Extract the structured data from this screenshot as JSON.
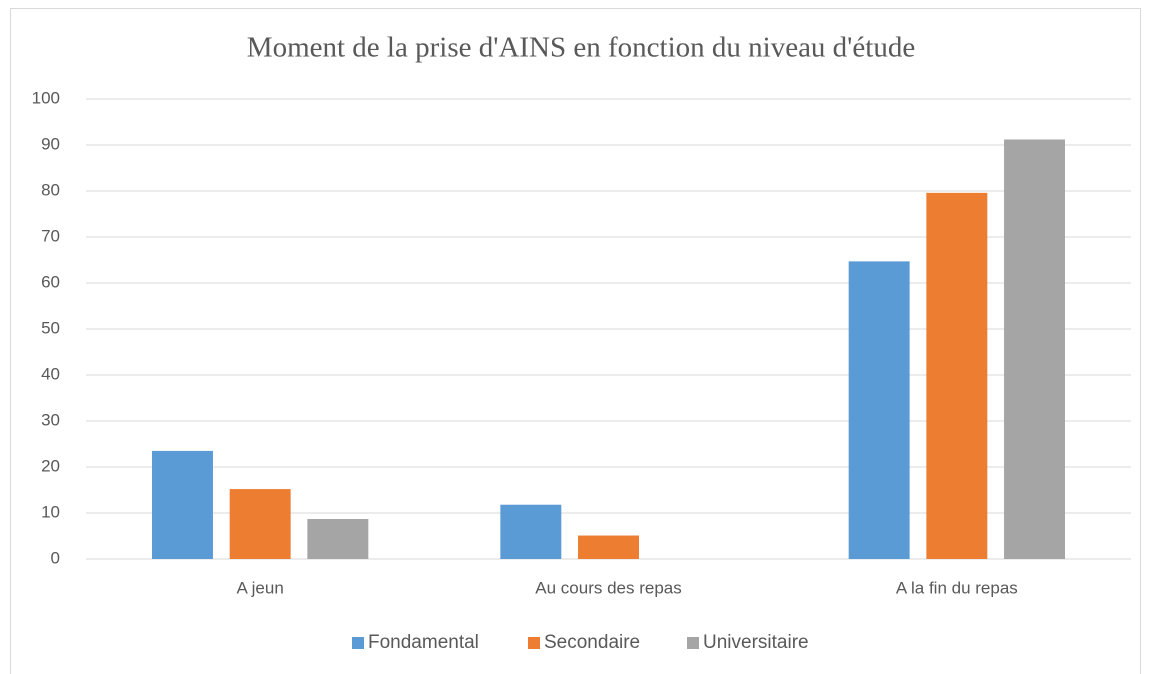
{
  "chart_data": {
    "type": "bar",
    "title": "Moment de la prise d'AINS en fonction du  niveau d'étude",
    "categories": [
      "A jeun",
      "Au cours des repas",
      "A la fin du repas"
    ],
    "series": [
      {
        "name": "Fondamental",
        "color": "#5b9bd5",
        "values": [
          23.5,
          11.8,
          64.7
        ]
      },
      {
        "name": "Secondaire",
        "color": "#ed7d31",
        "values": [
          15.2,
          5.1,
          79.6
        ]
      },
      {
        "name": "Universitaire",
        "color": "#a5a5a5",
        "values": [
          8.7,
          0,
          91.2
        ]
      }
    ],
    "ylim": [
      0,
      100
    ],
    "yticks": [
      0,
      10,
      20,
      30,
      40,
      50,
      60,
      70,
      80,
      90,
      100
    ],
    "grid": true,
    "legend": "bottom"
  }
}
